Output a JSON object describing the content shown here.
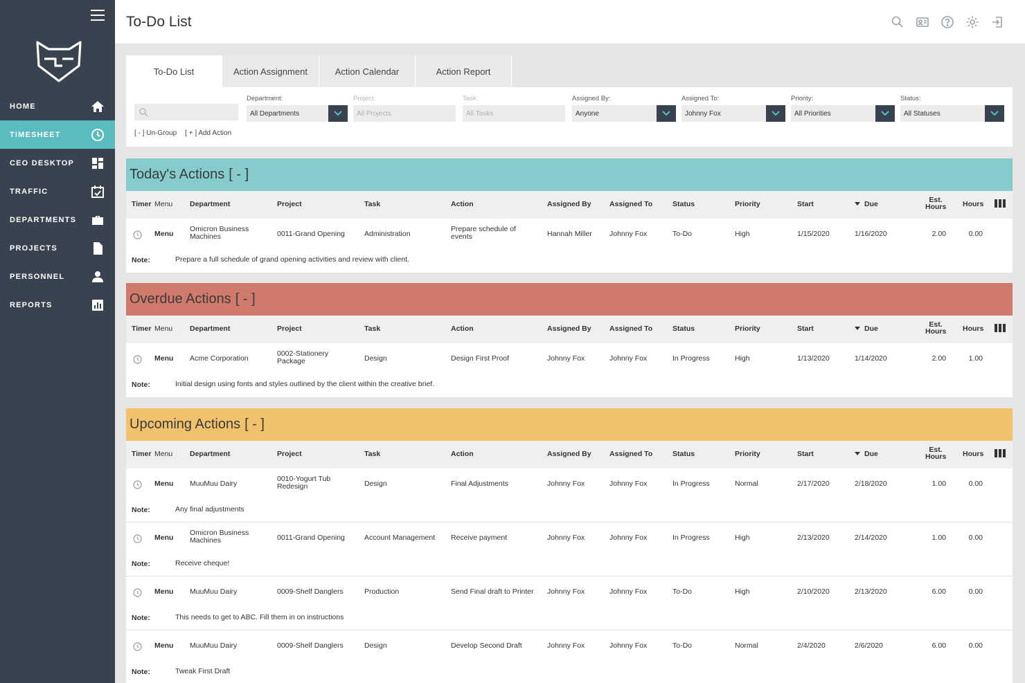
{
  "sidebar": {
    "items": [
      {
        "label": "HOME",
        "icon": "home-icon"
      },
      {
        "label": "TIMESHEET",
        "icon": "clock-icon",
        "active": true
      },
      {
        "label": "CEO DESKTOP",
        "icon": "dashboard-icon"
      },
      {
        "label": "TRAFFIC",
        "icon": "calendar-check-icon"
      },
      {
        "label": "DEPARTMENTS",
        "icon": "briefcase-icon"
      },
      {
        "label": "PROJECTS",
        "icon": "document-icon"
      },
      {
        "label": "PERSONNEL",
        "icon": "person-icon"
      },
      {
        "label": "REPORTS",
        "icon": "bar-chart-icon"
      }
    ]
  },
  "header": {
    "title": "To-Do List",
    "icons": [
      "search-icon",
      "contact-card-icon",
      "help-icon",
      "gear-icon",
      "logout-icon"
    ]
  },
  "tabs": [
    {
      "label": "To-Do List",
      "active": true
    },
    {
      "label": "Action Assignment"
    },
    {
      "label": "Action Calendar"
    },
    {
      "label": "Action Report"
    }
  ],
  "filters": {
    "search_placeholder": "",
    "department": {
      "label": "Department:",
      "value": "All Departments"
    },
    "project": {
      "label": "Project:",
      "value": "All Projects"
    },
    "task": {
      "label": "Task:",
      "value": "All Tasks"
    },
    "assigned_by": {
      "label": "Assigned By:",
      "value": "Anyone"
    },
    "assigned_to": {
      "label": "Assigned To:",
      "value": "Johnny Fox"
    },
    "priority": {
      "label": "Priority:",
      "value": "All Priorities"
    },
    "status": {
      "label": "Status:",
      "value": "All Statuses"
    },
    "ungroup_label": "[ - ] Un-Group",
    "add_action_label": "[ + ] Add Action"
  },
  "columns": {
    "timer": "Timer",
    "menu": "Menu",
    "department": "Department",
    "project": "Project",
    "task": "Task",
    "action": "Action",
    "assigned_by": "Assigned By",
    "assigned_to": "Assigned To",
    "status": "Status",
    "priority": "Priority",
    "start": "Start",
    "due": "Due",
    "est_hours_1": "Est.",
    "est_hours_2": "Hours",
    "hours": "Hours"
  },
  "note_label": "Note:",
  "menu_label": "Menu",
  "colors": {
    "sidebar_bg": "#38434f",
    "accent": "#5bbcbf",
    "today": "#86cccc",
    "overdue": "#d07a6c",
    "upcoming": "#f0c26e"
  },
  "sections": {
    "today": {
      "title": "Today's Actions",
      "toggle": "[ - ]",
      "rows": [
        {
          "department": [
            "Omicron Business",
            "Machines"
          ],
          "project": [
            "0011-Grand Opening"
          ],
          "task": "Administration",
          "action": [
            "Prepare schedule of",
            "events"
          ],
          "assigned_by": "Hannah Miller",
          "assigned_to": "Johnny Fox",
          "status": "To-Do",
          "priority": "High",
          "start": "1/15/2020",
          "due": "1/16/2020",
          "est_hours": "2.00",
          "hours": "0.00",
          "note": "Prepare a full schedule of grand opening activities and review with client."
        }
      ]
    },
    "overdue": {
      "title": "Overdue Actions",
      "toggle": "[ - ]",
      "rows": [
        {
          "department": [
            "Acme Corporation"
          ],
          "project": [
            "0002-Stationery",
            "Package"
          ],
          "task": "Design",
          "action": [
            "Design First Proof"
          ],
          "assigned_by": "Johnny Fox",
          "assigned_to": "Johnny Fox",
          "status": "In Progress",
          "priority": "High",
          "start": "1/13/2020",
          "due": "1/14/2020",
          "est_hours": "2.00",
          "hours": "1.00",
          "note": "Initial design using fonts and styles outlined by the client within the creative brief."
        }
      ]
    },
    "upcoming": {
      "title": "Upcoming Actions",
      "toggle": "[ - ]",
      "rows": [
        {
          "department": [
            "MuuMuu Dairy"
          ],
          "project": [
            "0010-Yogurt Tub",
            "Redesign"
          ],
          "task": "Design",
          "action": [
            "Final Adjustments"
          ],
          "assigned_by": "Johnny Fox",
          "assigned_to": "Johnny Fox",
          "status": "In Progress",
          "priority": "Normal",
          "start": "2/17/2020",
          "due": "2/18/2020",
          "est_hours": "1.00",
          "hours": "0.00",
          "note": "Any final adjustments"
        },
        {
          "department": [
            "Omicron Business",
            "Machines"
          ],
          "project": [
            "0011-Grand Opening"
          ],
          "task": "Account Management",
          "action": [
            "Receive payment"
          ],
          "assigned_by": "Johnny Fox",
          "assigned_to": "Johnny Fox",
          "status": "In Progress",
          "priority": "High",
          "start": "2/13/2020",
          "due": "2/14/2020",
          "est_hours": "1.00",
          "hours": "0.00",
          "note": "Receive cheque!"
        },
        {
          "department": [
            "MuuMuu Dairy"
          ],
          "project": [
            "0009-Shelf Danglers"
          ],
          "task": "Production",
          "action": [
            "Send Final draft to Printer"
          ],
          "assigned_by": "Johnny Fox",
          "assigned_to": "Johnny Fox",
          "status": "To-Do",
          "priority": "High",
          "start": "2/10/2020",
          "due": "2/13/2020",
          "est_hours": "6.00",
          "hours": "0.00",
          "note": "This needs to get to ABC. Fill them in on instructions"
        },
        {
          "department": [
            "MuuMuu Dairy"
          ],
          "project": [
            "0009-Shelf Danglers"
          ],
          "task": "Design",
          "action": [
            "Develop Second Draft"
          ],
          "assigned_by": "Johnny Fox",
          "assigned_to": "Johnny Fox",
          "status": "To-Do",
          "priority": "Normal",
          "start": "2/4/2020",
          "due": "2/6/2020",
          "est_hours": "6.00",
          "hours": "0.00",
          "note": "Tweak First Draft"
        }
      ]
    }
  }
}
